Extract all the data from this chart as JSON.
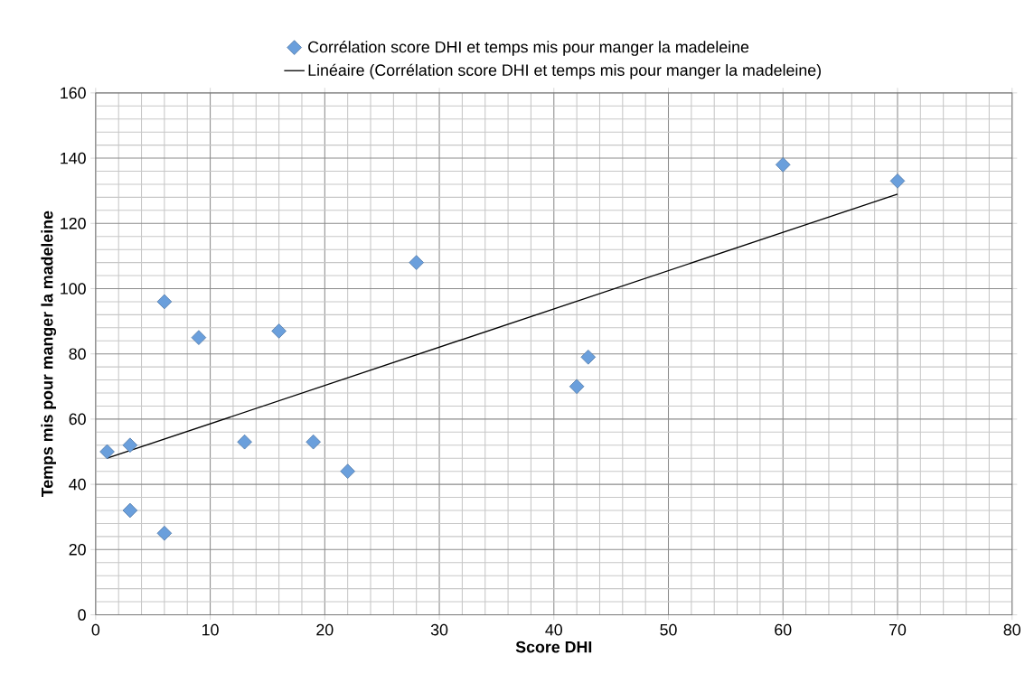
{
  "chart_data": {
    "type": "scatter",
    "xlabel": "Score DHI",
    "ylabel": "Temps mis pour manger la madeleine",
    "xlim": [
      0,
      80
    ],
    "xticks": [
      0,
      10,
      20,
      30,
      40,
      50,
      60,
      70,
      80
    ],
    "ylim": [
      0,
      160
    ],
    "yticks": [
      0,
      20,
      40,
      60,
      80,
      100,
      120,
      140,
      160
    ],
    "grid": true,
    "legend": "top",
    "marker": "diamond",
    "series": [
      {
        "name": "Corrélation score DHI et temps mis pour manger la madeleine",
        "color": "#6a9fdc",
        "x": [
          1,
          3,
          3,
          6,
          6,
          9,
          13,
          16,
          19,
          22,
          28,
          42,
          43,
          60,
          70
        ],
        "values": [
          50,
          52,
          32,
          25,
          96,
          85,
          53,
          87,
          53,
          44,
          108,
          70,
          79,
          138,
          133
        ]
      },
      {
        "name": "Linéaire (Corrélation score DHI et temps mis pour manger la madeleine)",
        "color": "#000000",
        "type": "line",
        "marker": "none",
        "line_style": "solid",
        "x": [
          1,
          70
        ],
        "values": [
          48,
          129
        ]
      }
    ]
  }
}
